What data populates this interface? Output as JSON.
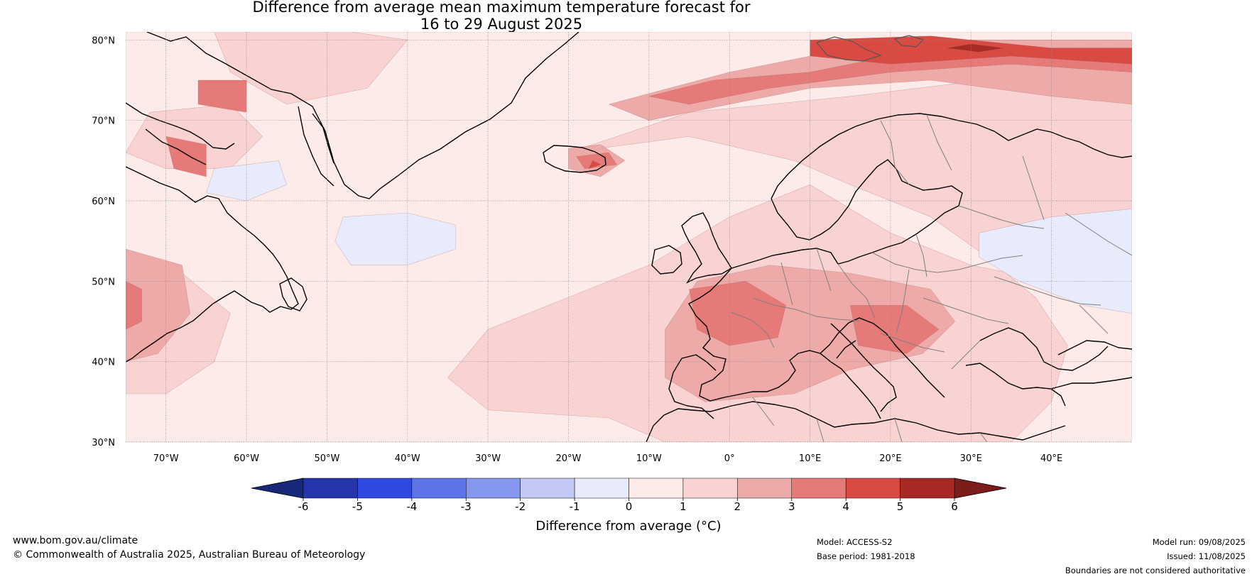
{
  "title_line1": "Difference from average mean maximum temperature forecast for",
  "title_line2": "16 to 29 August 2025",
  "map": {
    "lon_range": [
      -75,
      50
    ],
    "lat_range": [
      30,
      81
    ],
    "lat_ticks": [
      {
        "value": 80,
        "label": "80°N"
      },
      {
        "value": 70,
        "label": "70°N"
      },
      {
        "value": 60,
        "label": "60°N"
      },
      {
        "value": 50,
        "label": "50°N"
      },
      {
        "value": 40,
        "label": "40°N"
      },
      {
        "value": 30,
        "label": "30°N"
      }
    ],
    "lon_ticks": [
      {
        "value": -70,
        "label": "70°W"
      },
      {
        "value": -60,
        "label": "60°W"
      },
      {
        "value": -50,
        "label": "50°W"
      },
      {
        "value": -40,
        "label": "40°W"
      },
      {
        "value": -30,
        "label": "30°W"
      },
      {
        "value": -20,
        "label": "20°W"
      },
      {
        "value": -10,
        "label": "10°W"
      },
      {
        "value": 0,
        "label": "0°"
      },
      {
        "value": 10,
        "label": "10°E"
      },
      {
        "value": 20,
        "label": "20°E"
      },
      {
        "value": 30,
        "label": "30°E"
      },
      {
        "value": 40,
        "label": "40°E"
      }
    ],
    "background_color": "#fdebea",
    "anomaly_regions": [
      {
        "level": "0-1",
        "color": "#fdebea",
        "points": [
          [
            -75,
            81
          ],
          [
            50,
            81
          ],
          [
            50,
            30
          ],
          [
            -75,
            30
          ]
        ]
      },
      {
        "level": "1-2",
        "color": "#f8d3d1",
        "points": [
          [
            -20,
            66
          ],
          [
            -5,
            71
          ],
          [
            15,
            73
          ],
          [
            40,
            76
          ],
          [
            50,
            75
          ],
          [
            50,
            48
          ],
          [
            40,
            50
          ],
          [
            30,
            52
          ],
          [
            20,
            56
          ],
          [
            10,
            62
          ],
          [
            0,
            58
          ],
          [
            -10,
            52
          ],
          [
            -20,
            48
          ],
          [
            -30,
            44
          ],
          [
            -35,
            38
          ],
          [
            -30,
            34
          ],
          [
            -15,
            33
          ],
          [
            -8,
            30
          ],
          [
            20,
            30
          ],
          [
            35,
            30
          ],
          [
            40,
            35
          ],
          [
            42,
            42
          ],
          [
            38,
            48
          ],
          [
            32,
            53
          ],
          [
            25,
            58
          ],
          [
            15,
            62
          ],
          [
            8,
            65
          ],
          [
            -5,
            68
          ]
        ]
      },
      {
        "level": "1-2",
        "color": "#f8d3d1",
        "points": [
          [
            -75,
            52
          ],
          [
            -68,
            51
          ],
          [
            -62,
            46
          ],
          [
            -64,
            40
          ],
          [
            -70,
            36
          ],
          [
            -75,
            36
          ]
        ]
      },
      {
        "level": "1-2",
        "color": "#f8d3d1",
        "points": [
          [
            -72,
            71
          ],
          [
            -62,
            72
          ],
          [
            -58,
            68
          ],
          [
            -62,
            64
          ],
          [
            -70,
            64
          ],
          [
            -75,
            66
          ]
        ]
      },
      {
        "level": "1-2",
        "color": "#f8d3d1",
        "points": [
          [
            -64,
            81
          ],
          [
            -47,
            81
          ],
          [
            -40,
            80
          ],
          [
            -45,
            74
          ],
          [
            -55,
            72
          ],
          [
            -62,
            76
          ]
        ]
      },
      {
        "level": "-1-0",
        "color": "#e8ebfb",
        "points": [
          [
            -48,
            58
          ],
          [
            -40,
            58.5
          ],
          [
            -34,
            57
          ],
          [
            -34,
            54
          ],
          [
            -40,
            52
          ],
          [
            -47,
            52
          ],
          [
            -49,
            55
          ]
        ]
      },
      {
        "level": "-1-0",
        "color": "#e8ebfb",
        "points": [
          [
            -64,
            64
          ],
          [
            -56,
            65
          ],
          [
            -55,
            62
          ],
          [
            -60,
            60
          ],
          [
            -65,
            61
          ]
        ]
      },
      {
        "level": "-1-0",
        "color": "#e8ebfb",
        "points": [
          [
            31,
            56
          ],
          [
            40,
            58
          ],
          [
            50,
            59
          ],
          [
            50,
            46
          ],
          [
            44,
            47
          ],
          [
            36,
            50
          ],
          [
            31,
            53
          ]
        ]
      },
      {
        "level": "2-3",
        "color": "#eeaaa8",
        "points": [
          [
            -15,
            72
          ],
          [
            0,
            76
          ],
          [
            15,
            79
          ],
          [
            30,
            80
          ],
          [
            50,
            80
          ],
          [
            50,
            72
          ],
          [
            40,
            73
          ],
          [
            25,
            75
          ],
          [
            10,
            74
          ],
          [
            0,
            72
          ],
          [
            -10,
            70
          ]
        ]
      },
      {
        "level": "2-3",
        "color": "#eeaaa8",
        "points": [
          [
            -4,
            50
          ],
          [
            5,
            52
          ],
          [
            15,
            51
          ],
          [
            25,
            49
          ],
          [
            28,
            45
          ],
          [
            24,
            41
          ],
          [
            15,
            39
          ],
          [
            8,
            36
          ],
          [
            -3,
            35
          ],
          [
            -8,
            38
          ],
          [
            -8,
            44
          ]
        ]
      },
      {
        "level": "2-3",
        "color": "#eeaaa8",
        "points": [
          [
            -75,
            54
          ],
          [
            -68,
            52
          ],
          [
            -67,
            46
          ],
          [
            -71,
            41
          ],
          [
            -75,
            40
          ]
        ]
      },
      {
        "level": "2-3",
        "color": "#eeaaa8",
        "points": [
          [
            -20,
            66.5
          ],
          [
            -16,
            67
          ],
          [
            -13,
            65
          ],
          [
            -16,
            63
          ],
          [
            -20,
            64
          ]
        ]
      },
      {
        "level": "3-4",
        "color": "#e57a78",
        "points": [
          [
            -5,
            49
          ],
          [
            2,
            50
          ],
          [
            7,
            47
          ],
          [
            6,
            43
          ],
          [
            0,
            42
          ],
          [
            -4,
            44
          ]
        ]
      },
      {
        "level": "3-4",
        "color": "#e57a78",
        "points": [
          [
            15,
            47
          ],
          [
            22,
            47
          ],
          [
            26,
            44
          ],
          [
            22,
            41
          ],
          [
            16,
            42
          ]
        ]
      },
      {
        "level": "3-4",
        "color": "#e57a78",
        "points": [
          [
            -75,
            50
          ],
          [
            -73,
            49
          ],
          [
            -73,
            45
          ],
          [
            -75,
            44
          ]
        ]
      },
      {
        "level": "3-4",
        "color": "#e57a78",
        "points": [
          [
            -10,
            73
          ],
          [
            -2,
            75
          ],
          [
            10,
            76
          ],
          [
            20,
            78
          ],
          [
            35,
            79
          ],
          [
            50,
            79
          ],
          [
            50,
            76
          ],
          [
            35,
            77
          ],
          [
            20,
            76
          ],
          [
            5,
            74
          ],
          [
            -5,
            72
          ]
        ]
      },
      {
        "level": "3-4",
        "color": "#e57a78",
        "points": [
          [
            -19,
            65.5
          ],
          [
            -15,
            66
          ],
          [
            -14,
            64.5
          ],
          [
            -18,
            64
          ]
        ]
      },
      {
        "level": "3-4",
        "color": "#e57a78",
        "points": [
          [
            -70,
            68
          ],
          [
            -65,
            67
          ],
          [
            -65,
            63
          ],
          [
            -69,
            64
          ]
        ]
      },
      {
        "level": "3-4",
        "color": "#e57a78",
        "points": [
          [
            -66,
            75
          ],
          [
            -60,
            75
          ],
          [
            -60,
            71
          ],
          [
            -66,
            72
          ]
        ]
      },
      {
        "level": "4-5",
        "color": "#d94a42",
        "points": [
          [
            10,
            80
          ],
          [
            25,
            80.5
          ],
          [
            40,
            79
          ],
          [
            50,
            79
          ],
          [
            50,
            77
          ],
          [
            35,
            78
          ],
          [
            20,
            77
          ],
          [
            10,
            78
          ]
        ]
      },
      {
        "level": "4-5",
        "color": "#d94a42",
        "points": [
          [
            -17,
            65
          ],
          [
            -16,
            64.5
          ],
          [
            -17.5,
            64
          ]
        ]
      },
      {
        "level": "5-6",
        "color": "#a82a24",
        "points": [
          [
            27,
            79
          ],
          [
            30,
            79.5
          ],
          [
            34,
            79
          ],
          [
            31,
            78.5
          ]
        ]
      }
    ],
    "coastline_color": "#000000",
    "border_color": "#808080"
  },
  "colorbar": {
    "ticks": [
      "-6",
      "-5",
      "-4",
      "-3",
      "-2",
      "-1",
      "0",
      "1",
      "2",
      "3",
      "4",
      "5",
      "6"
    ],
    "colors": [
      "#2436aa",
      "#2e4ae0",
      "#5c74e8",
      "#8598ee",
      "#c1c9f4",
      "#e8ebfb",
      "#fdebea",
      "#f8d3d1",
      "#eeaaa8",
      "#e57a78",
      "#d94a42",
      "#a82a24"
    ],
    "extend_low_color": "#17287a",
    "extend_high_color": "#7b1d19",
    "label": "Difference from average (°C)"
  },
  "footer": {
    "website": "www.bom.gov.au/climate",
    "copyright": "© Commonwealth of Australia 2025, Australian Bureau of Meteorology",
    "model": "Model: ACCESS-S2",
    "base_period": "Base period: 1981-2018",
    "model_run": "Model run: 09/08/2025",
    "issued": "Issued: 11/08/2025",
    "disclaimer": "Boundaries are not considered authoritative"
  }
}
